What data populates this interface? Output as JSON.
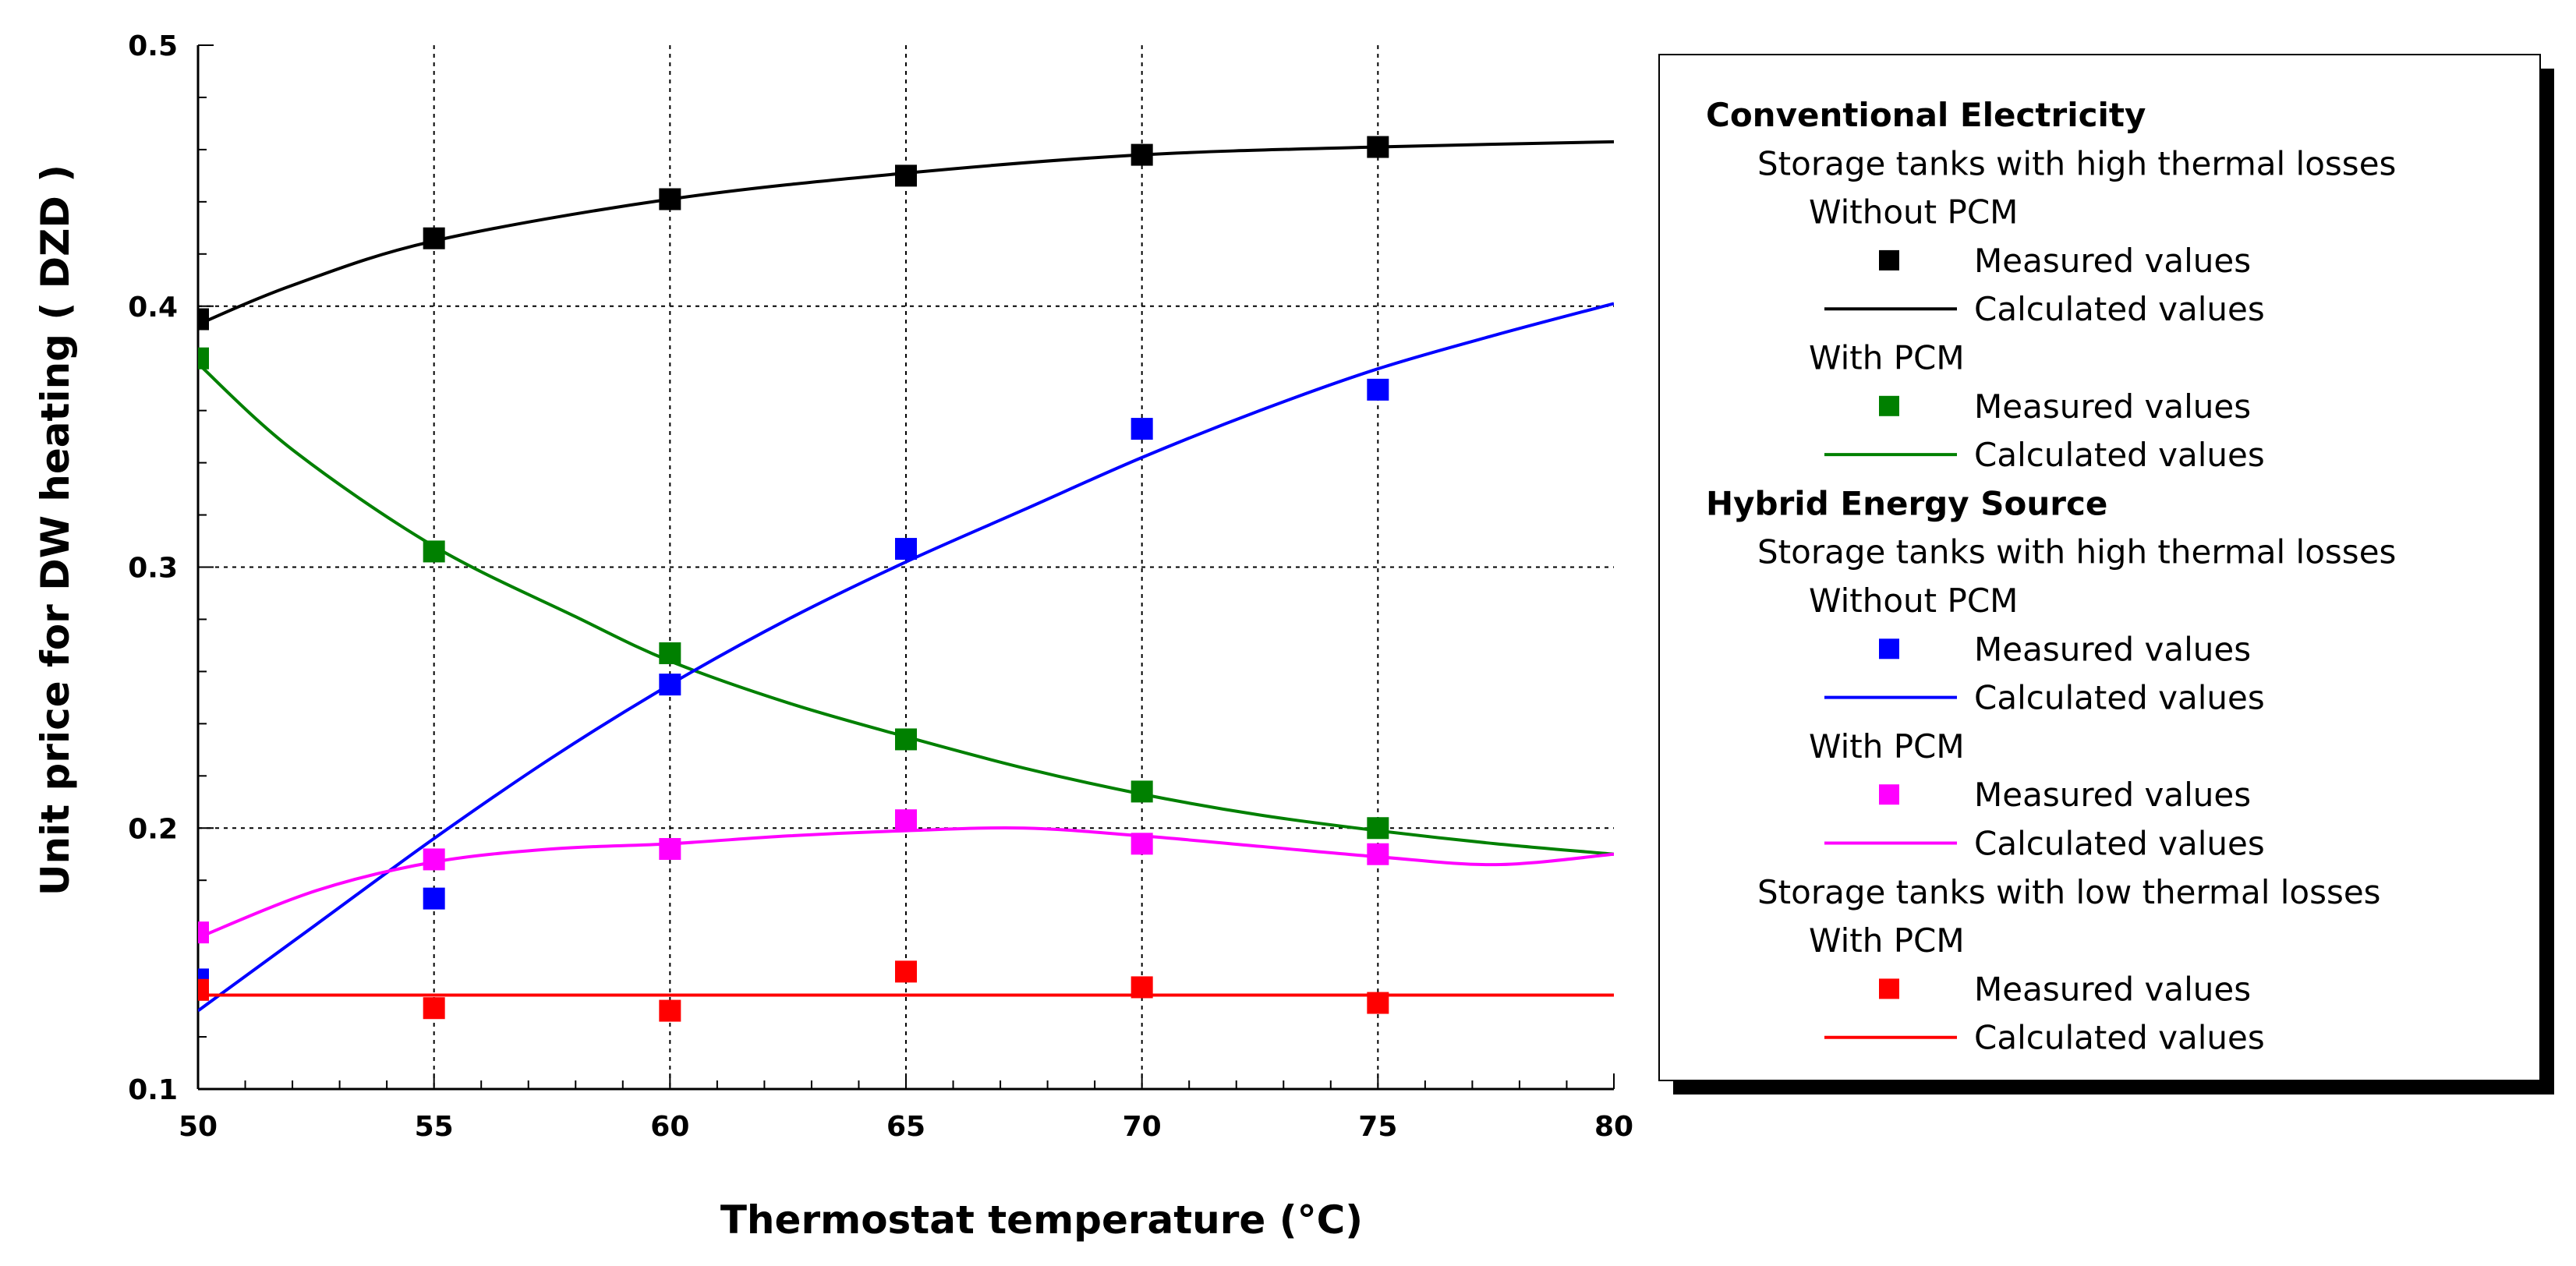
{
  "chart_data": {
    "type": "scatter",
    "xlabel": "Thermostat temperature (°C)",
    "ylabel": "Unit price for DW heating  ( DZD )",
    "xlim": [
      50,
      80
    ],
    "ylim": [
      0.1,
      0.5
    ],
    "x_ticks": [
      "50",
      "55",
      "60",
      "65",
      "70",
      "75",
      "80"
    ],
    "y_ticks": [
      "0.1",
      "0.2",
      "0.3",
      "0.4",
      "0.5"
    ],
    "grid": "dotted, major ticks",
    "legend_placement": "right",
    "series": [
      {
        "group": "Conventional Electricity",
        "subgroup": "Storage tanks with high thermal losses",
        "variant": "Without PCM",
        "color": "#000000",
        "measured": [
          [
            50,
            0.395
          ],
          [
            55,
            0.426
          ],
          [
            60,
            0.441
          ],
          [
            65,
            0.45
          ],
          [
            70,
            0.458
          ],
          [
            75,
            0.461
          ]
        ],
        "calculated": [
          [
            50,
            0.393
          ],
          [
            52,
            0.408
          ],
          [
            55,
            0.425
          ],
          [
            60,
            0.441
          ],
          [
            65,
            0.451
          ],
          [
            70,
            0.458
          ],
          [
            75,
            0.461
          ],
          [
            80,
            0.463
          ]
        ]
      },
      {
        "group": "Conventional Electricity",
        "subgroup": "Storage tanks with high thermal losses",
        "variant": "With PCM",
        "color": "#008000",
        "measured": [
          [
            50,
            0.38
          ],
          [
            55,
            0.306
          ],
          [
            60,
            0.267
          ],
          [
            65,
            0.234
          ],
          [
            70,
            0.214
          ],
          [
            75,
            0.2
          ]
        ],
        "calculated": [
          [
            50,
            0.378
          ],
          [
            52,
            0.345
          ],
          [
            55,
            0.308
          ],
          [
            58,
            0.281
          ],
          [
            60,
            0.264
          ],
          [
            62.5,
            0.248
          ],
          [
            65,
            0.235
          ],
          [
            67.5,
            0.223
          ],
          [
            70,
            0.213
          ],
          [
            72.5,
            0.205
          ],
          [
            75,
            0.199
          ],
          [
            77.5,
            0.194
          ],
          [
            80,
            0.19
          ]
        ]
      },
      {
        "group": "Hybrid Energy Source",
        "subgroup": "Storage tanks with high thermal losses",
        "variant": "Without PCM",
        "color": "#0000ff",
        "measured": [
          [
            50,
            0.142
          ],
          [
            55,
            0.173
          ],
          [
            60,
            0.255
          ],
          [
            65,
            0.307
          ],
          [
            70,
            0.353
          ],
          [
            75,
            0.368
          ]
        ],
        "calculated": [
          [
            50,
            0.13
          ],
          [
            52.5,
            0.163
          ],
          [
            55,
            0.196
          ],
          [
            57.5,
            0.227
          ],
          [
            60,
            0.255
          ],
          [
            62.5,
            0.28
          ],
          [
            65,
            0.302
          ],
          [
            67.5,
            0.322
          ],
          [
            70,
            0.342
          ],
          [
            72.5,
            0.36
          ],
          [
            75,
            0.376
          ],
          [
            77.5,
            0.389
          ],
          [
            80,
            0.401
          ]
        ]
      },
      {
        "group": "Hybrid Energy Source",
        "subgroup": "Storage tanks with high thermal losses",
        "variant": "With PCM",
        "color": "#ff00ff",
        "measured": [
          [
            50,
            0.16
          ],
          [
            55,
            0.188
          ],
          [
            60,
            0.192
          ],
          [
            65,
            0.203
          ],
          [
            70,
            0.194
          ],
          [
            75,
            0.19
          ]
        ],
        "calculated": [
          [
            50,
            0.158
          ],
          [
            52.5,
            0.176
          ],
          [
            55,
            0.187
          ],
          [
            57.5,
            0.192
          ],
          [
            60,
            0.194
          ],
          [
            62.5,
            0.197
          ],
          [
            65,
            0.199
          ],
          [
            67.5,
            0.2
          ],
          [
            70,
            0.197
          ],
          [
            72.5,
            0.193
          ],
          [
            75,
            0.189
          ],
          [
            77.5,
            0.186
          ],
          [
            80,
            0.19
          ]
        ]
      },
      {
        "group": "Hybrid Energy Source",
        "subgroup": "Storage tanks with low thermal losses",
        "variant": "With PCM",
        "color": "#ff0000",
        "measured": [
          [
            50,
            0.138
          ],
          [
            55,
            0.131
          ],
          [
            60,
            0.13
          ],
          [
            65,
            0.145
          ],
          [
            70,
            0.139
          ],
          [
            75,
            0.133
          ]
        ],
        "calculated": [
          [
            50,
            0.136
          ],
          [
            80,
            0.136
          ]
        ]
      }
    ]
  },
  "legend": {
    "rows": [
      {
        "kind": "head",
        "indent": 0,
        "text": "Conventional Electricity"
      },
      {
        "kind": "text",
        "indent": 1,
        "text": "Storage tanks with high thermal losses"
      },
      {
        "kind": "text",
        "indent": 2,
        "text": "Without PCM"
      },
      {
        "kind": "marker",
        "series": 0,
        "text": "Measured values"
      },
      {
        "kind": "line",
        "series": 0,
        "text": "Calculated values"
      },
      {
        "kind": "text",
        "indent": 2,
        "text": "With PCM"
      },
      {
        "kind": "marker",
        "series": 1,
        "text": "Measured values"
      },
      {
        "kind": "line",
        "series": 1,
        "text": "Calculated values"
      },
      {
        "kind": "head",
        "indent": 0,
        "text": "Hybrid Energy Source"
      },
      {
        "kind": "text",
        "indent": 1,
        "text": "Storage tanks with high thermal losses"
      },
      {
        "kind": "text",
        "indent": 2,
        "text": "Without PCM"
      },
      {
        "kind": "marker",
        "series": 2,
        "text": "Measured values"
      },
      {
        "kind": "line",
        "series": 2,
        "text": "Calculated values"
      },
      {
        "kind": "text",
        "indent": 2,
        "text": "With PCM"
      },
      {
        "kind": "marker",
        "series": 3,
        "text": "Measured values"
      },
      {
        "kind": "line",
        "series": 3,
        "text": "Calculated values"
      },
      {
        "kind": "text",
        "indent": 1,
        "text": "Storage tanks with low thermal losses"
      },
      {
        "kind": "text",
        "indent": 2,
        "text": "With PCM"
      },
      {
        "kind": "marker",
        "series": 4,
        "text": "Measured values"
      },
      {
        "kind": "line",
        "series": 4,
        "text": "Calculated values"
      }
    ]
  }
}
